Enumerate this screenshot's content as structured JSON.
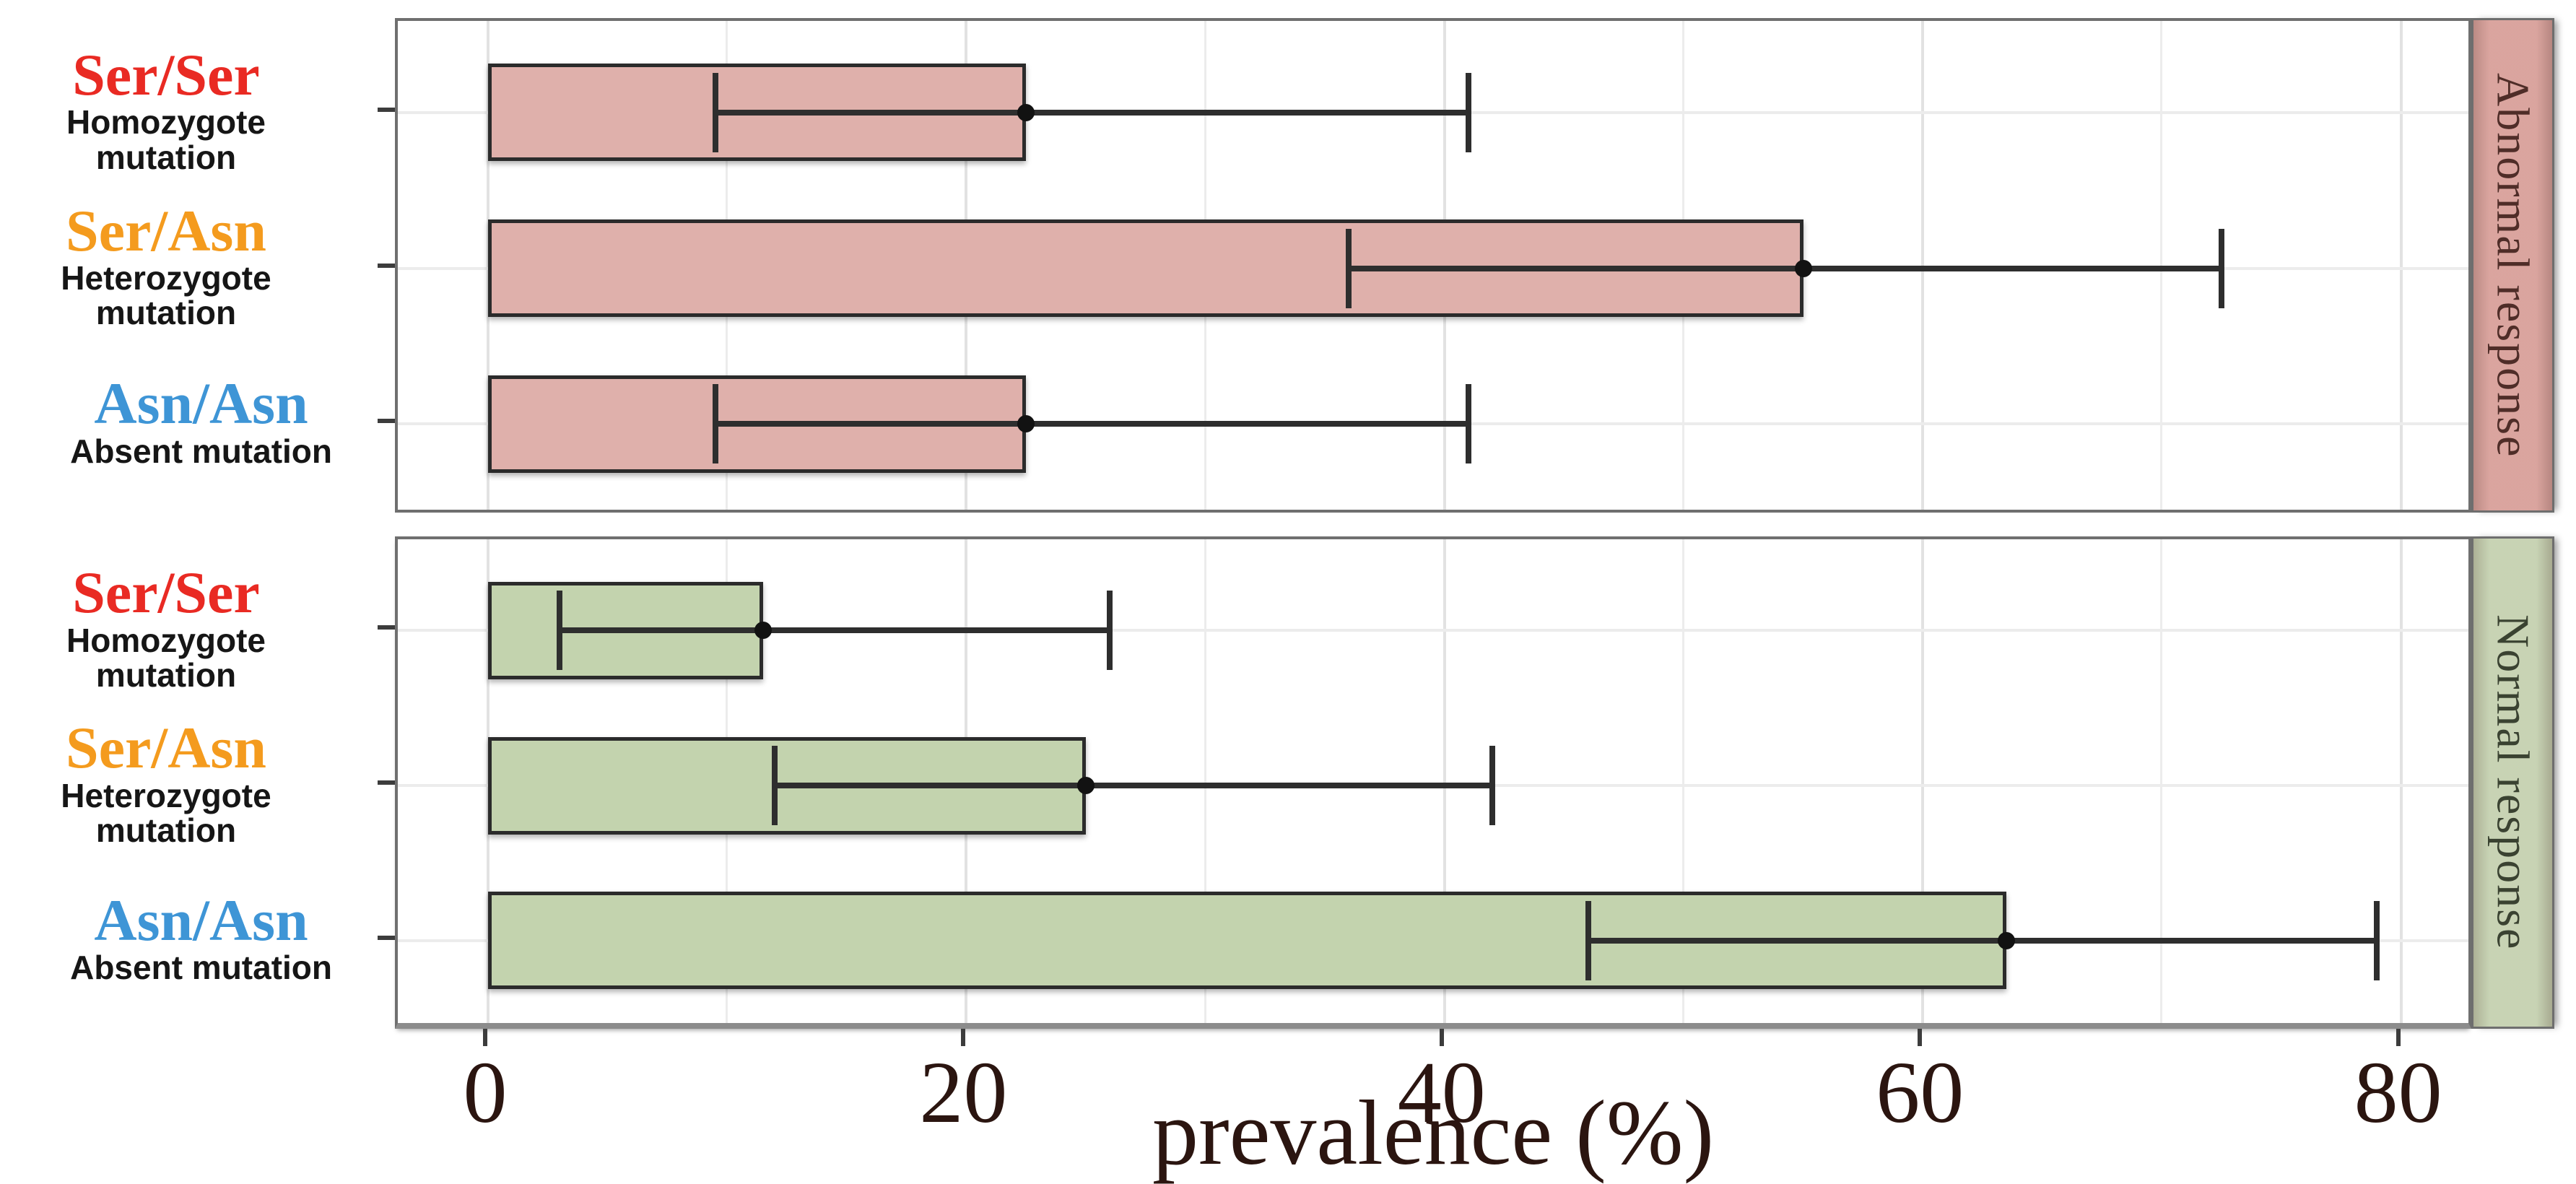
{
  "figure": {
    "background": "#ffffff"
  },
  "chart_data": {
    "type": "bar",
    "orientation": "horizontal",
    "title": "",
    "xlabel": "prevalence (%)",
    "ylabel": "",
    "x_ticks": [
      0,
      20,
      40,
      60,
      80
    ],
    "xlim": [
      -3.8,
      83.2
    ],
    "grid": "light vertical gridlines every 10, horizontal gridline at each category row",
    "legend_position": "none",
    "categories": [
      {
        "genotype": "Ser/Ser",
        "description": "Homozygote mutation",
        "label_color": "#e92a23"
      },
      {
        "genotype": "Ser/Asn",
        "description": "Heterozygote mutation",
        "label_color": "#f49b1e"
      },
      {
        "genotype": "Asn/Asn",
        "description": "Absent mutation",
        "label_color": "#3e95d6"
      }
    ],
    "panels": [
      {
        "label": "Abnormal response",
        "bar_fill": "#dfb0ab",
        "strip_fill": "#dfa9a3",
        "strip_text_color": "#4f2d28",
        "bars": [
          {
            "genotype": "Ser/Ser",
            "value": 22.5,
            "ci_low": 9.5,
            "ci_high": 41
          },
          {
            "genotype": "Ser/Asn",
            "value": 55,
            "ci_low": 36,
            "ci_high": 72.5
          },
          {
            "genotype": "Asn/Asn",
            "value": 22.5,
            "ci_low": 9.5,
            "ci_high": 41
          }
        ]
      },
      {
        "label": "Normal response",
        "bar_fill": "#c3d3ae",
        "strip_fill": "#ccd9b9",
        "strip_text_color": "#3a4231",
        "bars": [
          {
            "genotype": "Ser/Ser",
            "value": 11.5,
            "ci_low": 3,
            "ci_high": 26
          },
          {
            "genotype": "Ser/Asn",
            "value": 25,
            "ci_low": 12,
            "ci_high": 42
          },
          {
            "genotype": "Asn/Asn",
            "value": 63.5,
            "ci_low": 46,
            "ci_high": 79
          }
        ]
      }
    ],
    "style": {
      "error_bar_color": "#2e2e2e",
      "point_color": "#121212",
      "bar_border_color": "#2b2b2b",
      "panel_border_color": "#6f6f6f",
      "gridline_color": "#ececec",
      "axis_text_color": "#2b1510",
      "tick_mark_color": "#3c3c3c"
    }
  }
}
